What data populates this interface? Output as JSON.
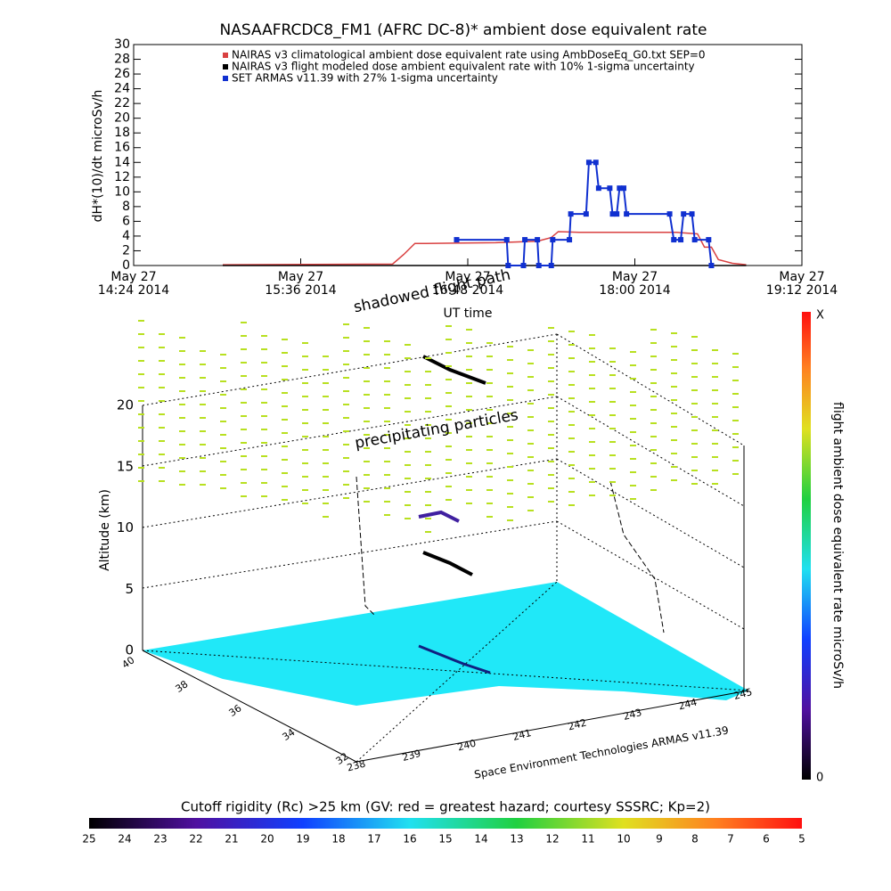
{
  "chart_data": [
    {
      "type": "line",
      "title": "NASAAFRCDC8_FM1 (AFRC DC-8)* ambient dose equivalent rate",
      "y_label": "dH*(10)/dt microSv/h",
      "x_label": "UT time",
      "xlim": [
        14.4,
        19.2
      ],
      "xticks": [
        {
          "value": 14.4,
          "label": "May 27\n14:24 2014"
        },
        {
          "value": 15.6,
          "label": "May 27\n15:36 2014"
        },
        {
          "value": 16.8,
          "label": "May 27\n16:48 2014"
        },
        {
          "value": 18.0,
          "label": "May 27\n18:00 2014"
        },
        {
          "value": 19.2,
          "label": "May 27\n19:12 2014"
        }
      ],
      "ylim": [
        0,
        30
      ],
      "yticks": [
        0,
        2,
        4,
        6,
        8,
        10,
        12,
        14,
        16,
        18,
        20,
        22,
        24,
        26,
        28,
        30
      ],
      "series": [
        {
          "name": "NAIRAS v3 climatological ambient dose equivalent rate using AmbDoseEq_G0.txt SEP=0",
          "color": "#d94040",
          "x": [
            15.04,
            16.26,
            16.34,
            16.42,
            16.5,
            17.0,
            17.3,
            17.4,
            17.45,
            17.6,
            18.0,
            18.3,
            18.45,
            18.5,
            18.55,
            18.6,
            18.7,
            18.8
          ],
          "values": [
            0.1,
            0.2,
            1.5,
            3,
            3,
            3.1,
            3.3,
            3.8,
            4.6,
            4.5,
            4.5,
            4.5,
            4.3,
            2.5,
            2.5,
            0.8,
            0.3,
            0.1
          ]
        },
        {
          "name": "NAIRAS v3 flight modeled dose ambient equivalent rate with 10% 1-sigma uncertainty",
          "color": "#000000",
          "x": [
            15.04,
            18.8
          ],
          "values": [
            0,
            0
          ]
        },
        {
          "name": "SET ARMAS v11.39 with 27% 1-sigma uncertainty",
          "color": "#1030d0",
          "x": [
            16.72,
            17.08,
            17.09,
            17.2,
            17.21,
            17.3,
            17.31,
            17.4,
            17.41,
            17.53,
            17.54,
            17.65,
            17.67,
            17.72,
            17.74,
            17.82,
            17.84,
            17.87,
            17.89,
            17.92,
            17.94,
            18.25,
            18.28,
            18.33,
            18.35,
            18.41,
            18.43,
            18.53,
            18.55
          ],
          "values": [
            3.5,
            3.5,
            0,
            0,
            3.5,
            3.5,
            0,
            0,
            3.5,
            3.5,
            7,
            7,
            14,
            14,
            10.5,
            10.5,
            7,
            7,
            10.5,
            10.5,
            7,
            7,
            3.5,
            3.5,
            7,
            7,
            3.5,
            3.5,
            0
          ]
        }
      ]
    }
  ],
  "scene": {
    "annotation_path": "shadowed flight path",
    "annotation_particles": "precipitating particles",
    "altitude_label": "Altitude (km)",
    "altitude_ticks": [
      "0",
      "5",
      "10",
      "15",
      "20"
    ],
    "lat_ticks": [
      "40",
      "38",
      "36",
      "34",
      "32"
    ],
    "lon_ticks": [
      "238",
      "239",
      "240",
      "241",
      "242",
      "243",
      "244",
      "245"
    ],
    "credit": "Space Environment Technologies ARMAS v11.39",
    "dose_bar_label": "flight ambient dose equivalent rate microSv/h",
    "dose_bar_top": "X",
    "dose_bar_bottom": "0",
    "cutoff_title": "Cutoff rigidity (Rc) >25 km (GV: red = greatest hazard; courtesy SSSRC; Kp=2)",
    "cutoff_ticks": [
      "25",
      "24",
      "23",
      "22",
      "21",
      "20",
      "19",
      "18",
      "17",
      "16",
      "15",
      "14",
      "13",
      "12",
      "11",
      "10",
      "9",
      "8",
      "7",
      "6",
      "5"
    ]
  }
}
